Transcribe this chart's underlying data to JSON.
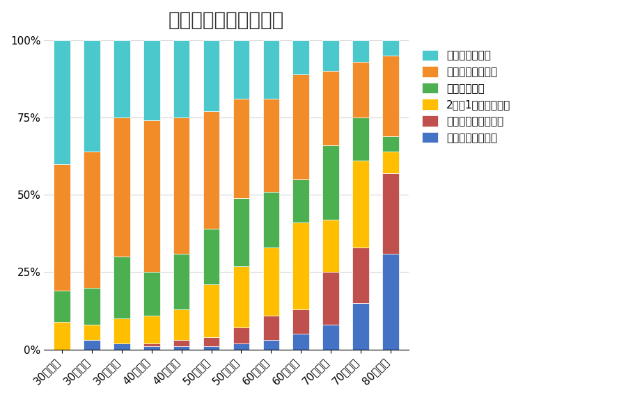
{
  "title": "陰茎硬度の年齢別推移",
  "categories": [
    "30歳未満",
    "30代前半",
    "30代後半",
    "40代前半",
    "40代後半",
    "50代前半",
    "50代後半",
    "60代前半",
    "60代後半",
    "70代前半",
    "70代後半",
    "80歳以上"
  ],
  "series": [
    {
      "name": "全く硬くならない",
      "color": "#4472C4",
      "values": [
        0,
        3,
        2,
        1,
        1,
        1,
        2,
        3,
        5,
        8,
        15,
        31
      ]
    },
    {
      "name": "あまり硬くならない",
      "color": "#C0504D",
      "values": [
        0,
        0,
        0,
        1,
        2,
        3,
        5,
        8,
        8,
        17,
        18,
        26
      ]
    },
    {
      "name": "2回に1回は硬くなる",
      "color": "#FFBF00",
      "values": [
        9,
        5,
        8,
        9,
        10,
        17,
        20,
        22,
        28,
        17,
        28,
        7
      ]
    },
    {
      "name": "時々硬くなる",
      "color": "#4CAF50",
      "values": [
        10,
        12,
        20,
        14,
        18,
        18,
        22,
        18,
        14,
        24,
        14,
        5
      ]
    },
    {
      "name": "しばしば硬くなる",
      "color": "#F28C28",
      "values": [
        41,
        44,
        45,
        49,
        44,
        38,
        32,
        30,
        34,
        24,
        18,
        26
      ]
    },
    {
      "name": "いつも硬くなる",
      "color": "#4BC8CC",
      "values": [
        40,
        36,
        25,
        26,
        25,
        23,
        19,
        19,
        11,
        10,
        7,
        5
      ]
    }
  ],
  "ylabel_ticks": [
    "0%",
    "25%",
    "50%",
    "75%",
    "100%"
  ],
  "background_color": "#ffffff",
  "title_fontsize": 20,
  "tick_fontsize": 11,
  "legend_fontsize": 11
}
